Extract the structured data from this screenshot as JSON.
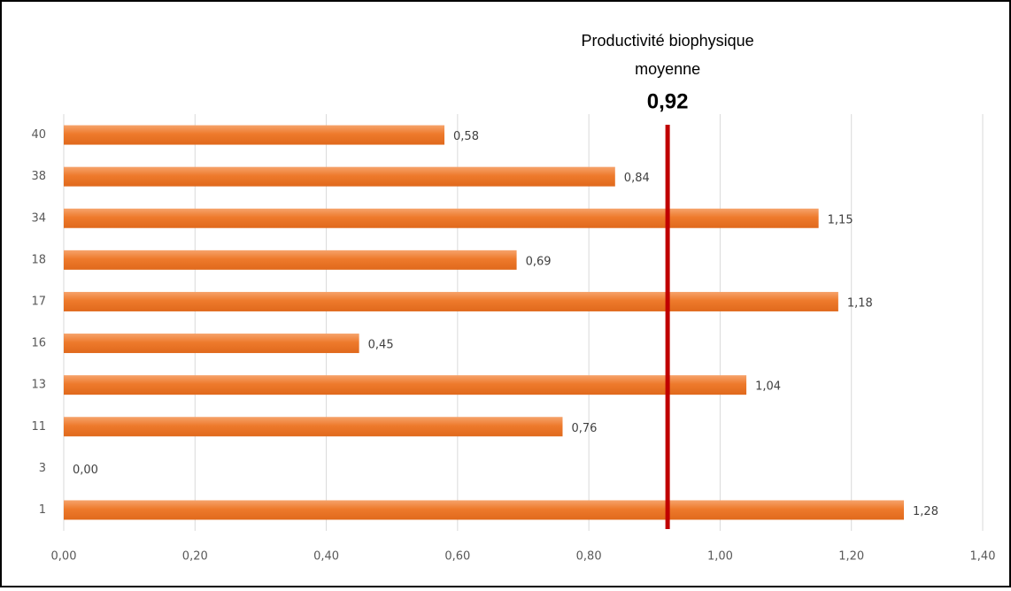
{
  "chart_data": {
    "type": "barh",
    "categories": [
      "40",
      "38",
      "34",
      "18",
      "17",
      "16",
      "13",
      "11",
      "3",
      "1"
    ],
    "values": [
      0.58,
      0.84,
      1.15,
      0.69,
      1.18,
      0.45,
      1.04,
      0.76,
      0.0,
      1.28
    ],
    "value_labels": [
      "0,58",
      "0,84",
      "1,15",
      "0,69",
      "1,18",
      "0,45",
      "1,04",
      "0,76",
      "0,00",
      "1,28"
    ],
    "color": "#ed7d31",
    "xlim": [
      0,
      1.4
    ],
    "xticks": [
      {
        "value": 0,
        "label": "0,00"
      },
      {
        "value": 0.2,
        "label": "0,20"
      },
      {
        "value": 0.4,
        "label": "0,40"
      },
      {
        "value": 0.6,
        "label": "0,60"
      },
      {
        "value": 0.8,
        "label": "0,80"
      },
      {
        "value": 1.0,
        "label": "1,00"
      },
      {
        "value": 1.2,
        "label": "1,20"
      },
      {
        "value": 1.4,
        "label": "1,40"
      }
    ],
    "grid": true,
    "reference_line": {
      "title": [
        "Productivité biophysique",
        "moyenne"
      ],
      "value": 0.92,
      "label": "0,92",
      "color": "#c00000"
    }
  }
}
